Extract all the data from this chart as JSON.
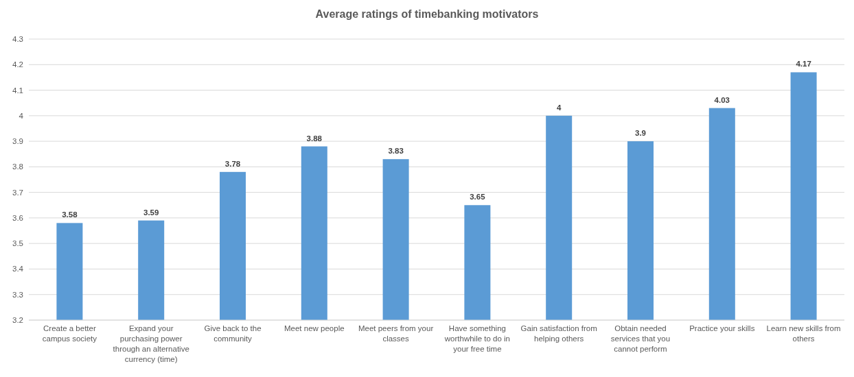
{
  "chart_data": {
    "type": "bar",
    "title": "Average ratings of timebanking motivators",
    "categories": [
      "Create a better campus society",
      "Expand your purchasing power through an alternative currency (time)",
      "Give back to the community",
      "Meet new people",
      "Meet peers from your classes",
      "Have something worthwhile to do in your free time",
      "Gain satisfaction from helping others",
      "Obtain needed services that you cannot perform",
      "Practice your skills",
      "Learn new skills from others"
    ],
    "values": [
      3.58,
      3.59,
      3.78,
      3.88,
      3.83,
      3.65,
      4,
      3.9,
      4.03,
      4.17
    ],
    "color": "#5b9bd5",
    "ylim": [
      3.2,
      4.3
    ],
    "yticks": [
      3.2,
      3.3,
      3.4,
      3.5,
      3.6,
      3.7,
      3.8,
      3.9,
      4,
      4.1,
      4.2,
      4.3
    ],
    "grid": "y",
    "data_labels": true
  }
}
